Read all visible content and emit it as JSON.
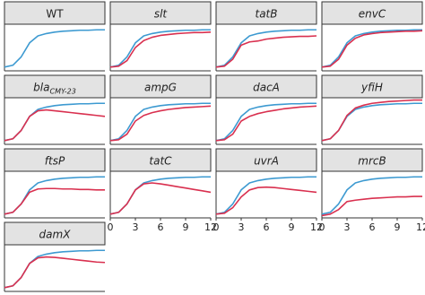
{
  "chart_data": [
    {
      "type": "line",
      "title": "WT",
      "italic": false,
      "x": [
        0,
        1,
        2,
        3,
        4,
        5,
        6,
        7,
        8,
        9,
        10,
        11,
        12
      ],
      "xlim": [
        0,
        12
      ],
      "ylim": [
        0,
        1
      ],
      "series": [
        {
          "color": "#3d9ad1",
          "values": [
            0.08,
            0.12,
            0.3,
            0.6,
            0.75,
            0.8,
            0.83,
            0.85,
            0.86,
            0.87,
            0.87,
            0.88,
            0.88
          ]
        }
      ]
    },
    {
      "type": "line",
      "title": "slt",
      "italic": true,
      "x": [
        0,
        1,
        2,
        3,
        4,
        5,
        6,
        7,
        8,
        9,
        10,
        11,
        12
      ],
      "xlim": [
        0,
        12
      ],
      "ylim": [
        0,
        1
      ],
      "series": [
        {
          "color": "#3d9ad1",
          "values": [
            0.08,
            0.12,
            0.3,
            0.6,
            0.75,
            0.8,
            0.83,
            0.85,
            0.86,
            0.87,
            0.87,
            0.88,
            0.88
          ]
        },
        {
          "color": "#d9304f",
          "values": [
            0.08,
            0.1,
            0.22,
            0.5,
            0.65,
            0.72,
            0.76,
            0.78,
            0.8,
            0.81,
            0.82,
            0.82,
            0.83
          ]
        }
      ]
    },
    {
      "type": "line",
      "title": "tatB",
      "italic": true,
      "x": [
        0,
        1,
        2,
        3,
        4,
        5,
        6,
        7,
        8,
        9,
        10,
        11,
        12
      ],
      "xlim": [
        0,
        12
      ],
      "ylim": [
        0,
        1
      ],
      "series": [
        {
          "color": "#3d9ad1",
          "values": [
            0.08,
            0.12,
            0.3,
            0.6,
            0.75,
            0.8,
            0.83,
            0.85,
            0.86,
            0.87,
            0.87,
            0.88,
            0.88
          ]
        },
        {
          "color": "#d9304f",
          "values": [
            0.08,
            0.1,
            0.25,
            0.55,
            0.62,
            0.64,
            0.68,
            0.7,
            0.72,
            0.73,
            0.74,
            0.74,
            0.75
          ]
        }
      ]
    },
    {
      "type": "line",
      "title": "envC",
      "italic": true,
      "x": [
        0,
        1,
        2,
        3,
        4,
        5,
        6,
        7,
        8,
        9,
        10,
        11,
        12
      ],
      "xlim": [
        0,
        12
      ],
      "ylim": [
        0,
        1
      ],
      "series": [
        {
          "color": "#3d9ad1",
          "values": [
            0.08,
            0.12,
            0.3,
            0.6,
            0.75,
            0.8,
            0.83,
            0.85,
            0.86,
            0.87,
            0.87,
            0.88,
            0.88
          ]
        },
        {
          "color": "#d9304f",
          "values": [
            0.08,
            0.1,
            0.25,
            0.55,
            0.7,
            0.77,
            0.8,
            0.82,
            0.83,
            0.84,
            0.85,
            0.85,
            0.86
          ]
        }
      ]
    },
    {
      "type": "line",
      "title": "bla",
      "title_subscript": "CMY-23",
      "italic": true,
      "x": [
        0,
        1,
        2,
        3,
        4,
        5,
        6,
        7,
        8,
        9,
        10,
        11,
        12
      ],
      "xlim": [
        0,
        12
      ],
      "ylim": [
        0,
        1
      ],
      "series": [
        {
          "color": "#3d9ad1",
          "values": [
            0.08,
            0.12,
            0.3,
            0.6,
            0.75,
            0.8,
            0.83,
            0.85,
            0.86,
            0.87,
            0.87,
            0.88,
            0.88
          ]
        },
        {
          "color": "#d9304f",
          "values": [
            0.08,
            0.12,
            0.3,
            0.6,
            0.72,
            0.74,
            0.72,
            0.7,
            0.68,
            0.66,
            0.64,
            0.62,
            0.6
          ]
        }
      ]
    },
    {
      "type": "line",
      "title": "ampG",
      "italic": true,
      "x": [
        0,
        1,
        2,
        3,
        4,
        5,
        6,
        7,
        8,
        9,
        10,
        11,
        12
      ],
      "xlim": [
        0,
        12
      ],
      "ylim": [
        0,
        1
      ],
      "series": [
        {
          "color": "#3d9ad1",
          "values": [
            0.08,
            0.12,
            0.3,
            0.6,
            0.75,
            0.8,
            0.83,
            0.85,
            0.86,
            0.87,
            0.87,
            0.88,
            0.88
          ]
        },
        {
          "color": "#d9304f",
          "values": [
            0.08,
            0.1,
            0.22,
            0.5,
            0.62,
            0.68,
            0.72,
            0.75,
            0.77,
            0.79,
            0.8,
            0.81,
            0.82
          ]
        }
      ]
    },
    {
      "type": "line",
      "title": "dacA",
      "italic": true,
      "x": [
        0,
        1,
        2,
        3,
        4,
        5,
        6,
        7,
        8,
        9,
        10,
        11,
        12
      ],
      "xlim": [
        0,
        12
      ],
      "ylim": [
        0,
        1
      ],
      "series": [
        {
          "color": "#3d9ad1",
          "values": [
            0.08,
            0.12,
            0.3,
            0.6,
            0.75,
            0.8,
            0.83,
            0.85,
            0.86,
            0.87,
            0.87,
            0.88,
            0.88
          ]
        },
        {
          "color": "#d9304f",
          "values": [
            0.08,
            0.1,
            0.22,
            0.5,
            0.6,
            0.66,
            0.7,
            0.73,
            0.76,
            0.78,
            0.8,
            0.81,
            0.82
          ]
        }
      ]
    },
    {
      "type": "line",
      "title": "yfiH",
      "italic": true,
      "x": [
        0,
        1,
        2,
        3,
        4,
        5,
        6,
        7,
        8,
        9,
        10,
        11,
        12
      ],
      "xlim": [
        0,
        12
      ],
      "ylim": [
        0,
        1
      ],
      "series": [
        {
          "color": "#3d9ad1",
          "values": [
            0.08,
            0.12,
            0.3,
            0.6,
            0.75,
            0.8,
            0.83,
            0.85,
            0.86,
            0.87,
            0.87,
            0.88,
            0.88
          ]
        },
        {
          "color": "#d9304f",
          "values": [
            0.08,
            0.12,
            0.3,
            0.62,
            0.78,
            0.84,
            0.88,
            0.9,
            0.92,
            0.93,
            0.94,
            0.95,
            0.95
          ]
        }
      ]
    },
    {
      "type": "line",
      "title": "ftsP",
      "italic": true,
      "x": [
        0,
        1,
        2,
        3,
        4,
        5,
        6,
        7,
        8,
        9,
        10,
        11,
        12
      ],
      "xlim": [
        0,
        12
      ],
      "ylim": [
        0,
        1
      ],
      "series": [
        {
          "color": "#3d9ad1",
          "values": [
            0.08,
            0.12,
            0.3,
            0.6,
            0.75,
            0.8,
            0.83,
            0.85,
            0.86,
            0.87,
            0.87,
            0.88,
            0.88
          ]
        },
        {
          "color": "#d9304f",
          "values": [
            0.08,
            0.12,
            0.3,
            0.55,
            0.62,
            0.63,
            0.63,
            0.62,
            0.62,
            0.61,
            0.61,
            0.6,
            0.6
          ]
        }
      ]
    },
    {
      "type": "line",
      "title": "tatC",
      "italic": true,
      "x": [
        0,
        1,
        2,
        3,
        4,
        5,
        6,
        7,
        8,
        9,
        10,
        11,
        12
      ],
      "xlim": [
        0,
        12
      ],
      "ylim": [
        0,
        1
      ],
      "xticks": [
        0,
        3,
        6,
        9,
        12
      ],
      "series": [
        {
          "color": "#3d9ad1",
          "values": [
            0.08,
            0.12,
            0.3,
            0.6,
            0.75,
            0.8,
            0.83,
            0.85,
            0.86,
            0.87,
            0.87,
            0.88,
            0.88
          ]
        },
        {
          "color": "#d9304f",
          "values": [
            0.08,
            0.12,
            0.3,
            0.6,
            0.73,
            0.75,
            0.73,
            0.7,
            0.67,
            0.64,
            0.61,
            0.58,
            0.55
          ]
        }
      ]
    },
    {
      "type": "line",
      "title": "uvrA",
      "italic": true,
      "x": [
        0,
        1,
        2,
        3,
        4,
        5,
        6,
        7,
        8,
        9,
        10,
        11,
        12
      ],
      "xlim": [
        0,
        12
      ],
      "ylim": [
        0,
        1
      ],
      "xticks": [
        0,
        3,
        6,
        9,
        12
      ],
      "series": [
        {
          "color": "#3d9ad1",
          "values": [
            0.08,
            0.12,
            0.3,
            0.6,
            0.75,
            0.8,
            0.83,
            0.85,
            0.86,
            0.87,
            0.87,
            0.88,
            0.88
          ]
        },
        {
          "color": "#d9304f",
          "values": [
            0.08,
            0.1,
            0.22,
            0.45,
            0.6,
            0.65,
            0.66,
            0.65,
            0.63,
            0.61,
            0.59,
            0.57,
            0.55
          ]
        }
      ]
    },
    {
      "type": "line",
      "title": "mrcB",
      "italic": true,
      "x": [
        0,
        1,
        2,
        3,
        4,
        5,
        6,
        7,
        8,
        9,
        10,
        11,
        12
      ],
      "xlim": [
        0,
        12
      ],
      "ylim": [
        0,
        1
      ],
      "xticks": [
        0,
        3,
        6,
        9,
        12
      ],
      "series": [
        {
          "color": "#3d9ad1",
          "values": [
            0.08,
            0.12,
            0.3,
            0.6,
            0.75,
            0.8,
            0.83,
            0.85,
            0.86,
            0.87,
            0.87,
            0.88,
            0.88
          ]
        },
        {
          "color": "#d9304f",
          "values": [
            0.05,
            0.08,
            0.18,
            0.35,
            0.38,
            0.4,
            0.42,
            0.43,
            0.44,
            0.45,
            0.45,
            0.46,
            0.46
          ]
        }
      ]
    },
    {
      "type": "line",
      "title": "damX",
      "italic": true,
      "x": [
        0,
        1,
        2,
        3,
        4,
        5,
        6,
        7,
        8,
        9,
        10,
        11,
        12
      ],
      "xlim": [
        0,
        12
      ],
      "ylim": [
        0,
        1
      ],
      "series": [
        {
          "color": "#3d9ad1",
          "values": [
            0.08,
            0.12,
            0.3,
            0.6,
            0.75,
            0.8,
            0.83,
            0.85,
            0.86,
            0.87,
            0.87,
            0.88,
            0.88
          ]
        },
        {
          "color": "#d9304f",
          "values": [
            0.08,
            0.12,
            0.3,
            0.6,
            0.72,
            0.74,
            0.73,
            0.71,
            0.69,
            0.67,
            0.65,
            0.63,
            0.62
          ]
        }
      ]
    }
  ]
}
